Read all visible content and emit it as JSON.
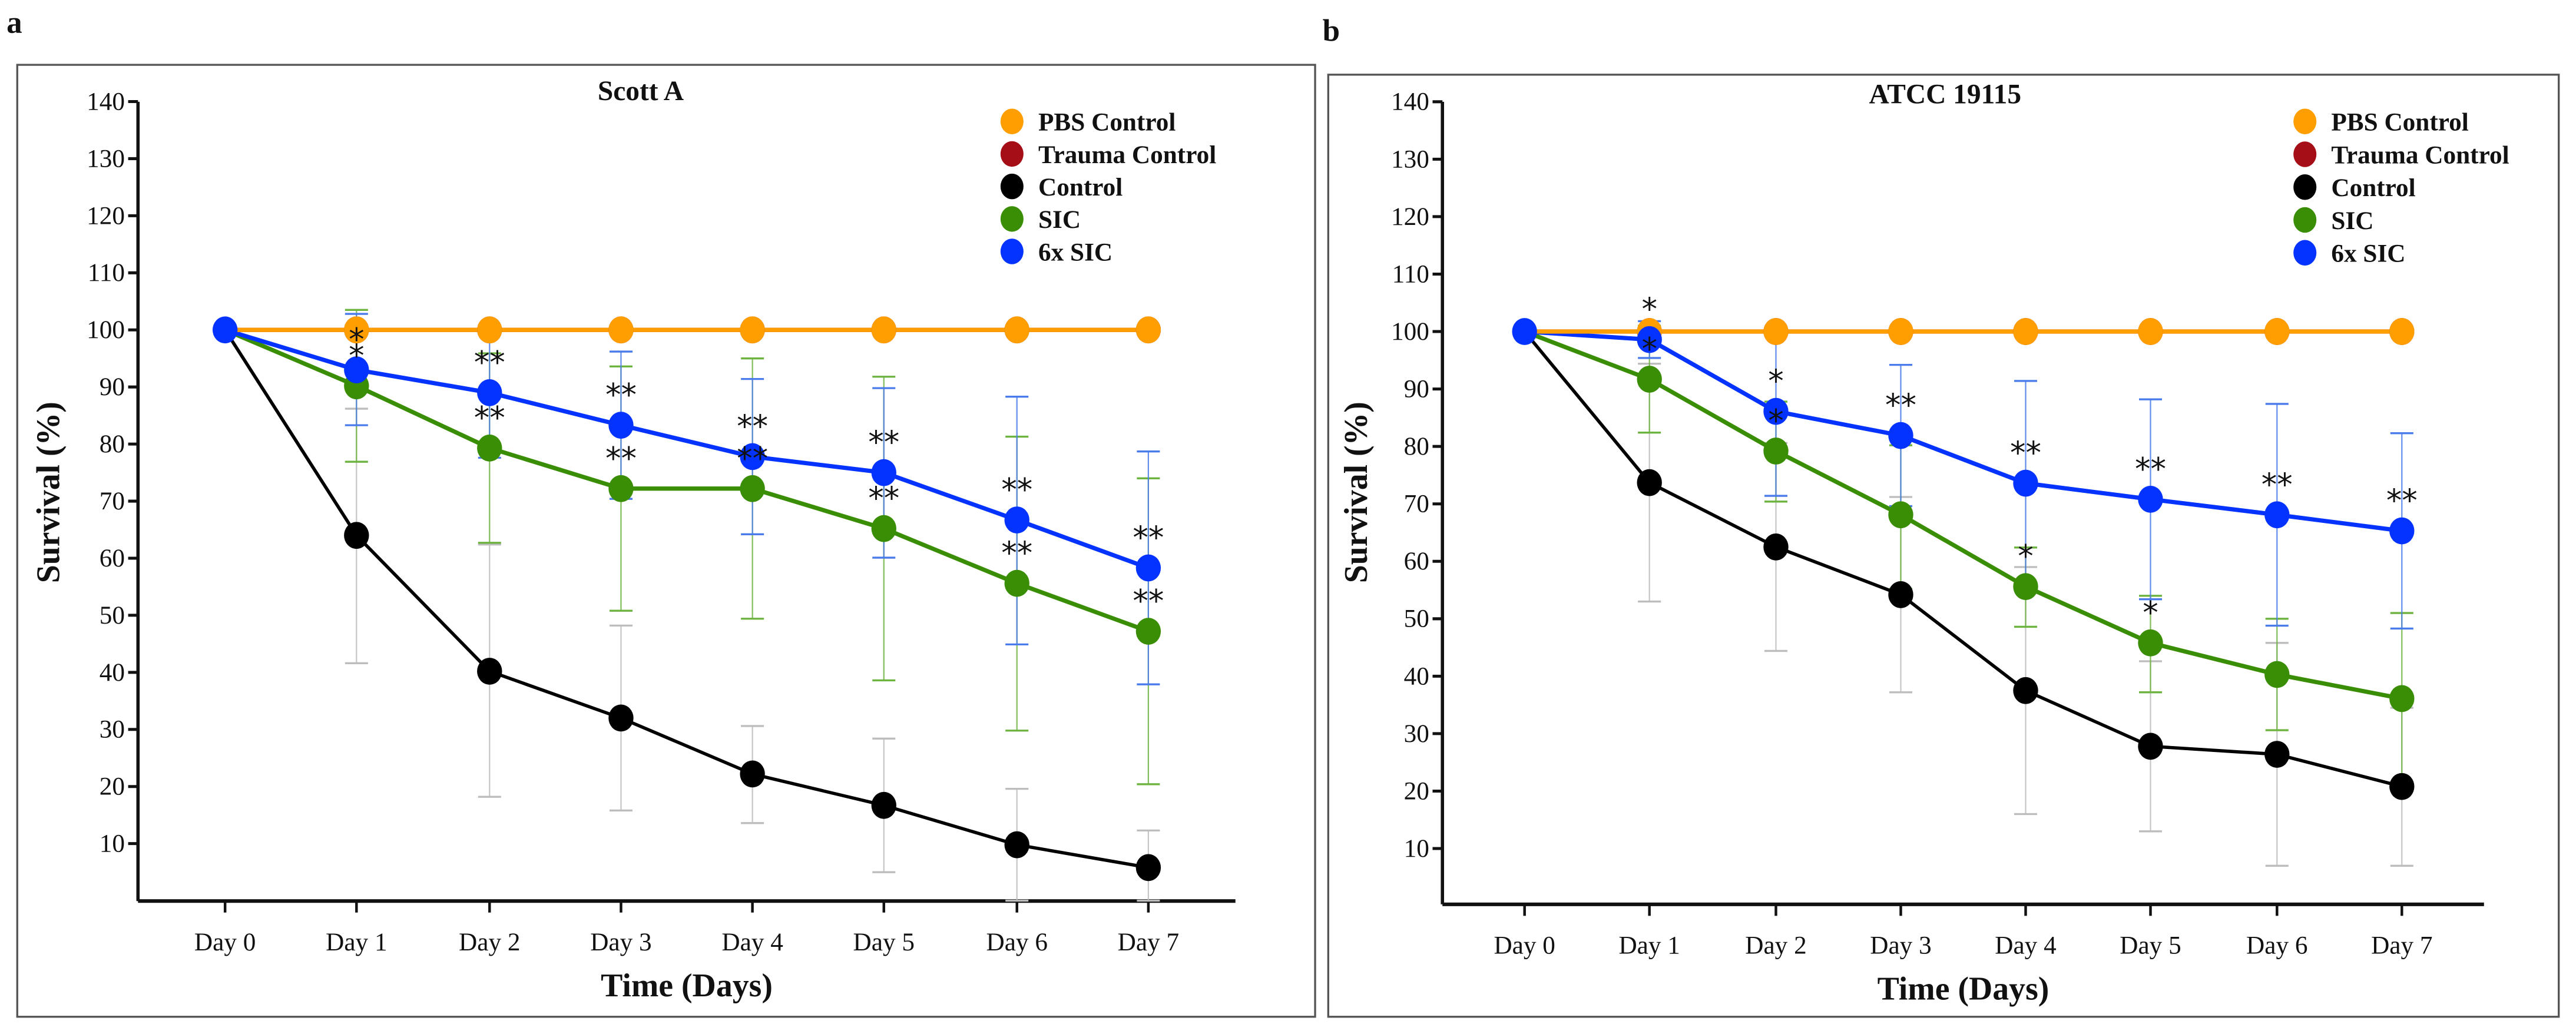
{
  "figure": {
    "panels": [
      {
        "letter": "a",
        "title": "Scott A"
      },
      {
        "letter": "b",
        "title": "ATCC 19115"
      }
    ]
  },
  "chart_data": [
    {
      "type": "line",
      "panel": "a",
      "title": "Scott A",
      "xlabel": "Time (Days)",
      "ylabel": "Survival (%)",
      "categories": [
        "Day 0",
        "Day 1",
        "Day 2",
        "Day 3",
        "Day 4",
        "Day 5",
        "Day 6",
        "Day 7"
      ],
      "yticks": [
        10,
        20,
        30,
        40,
        50,
        60,
        70,
        80,
        90,
        100,
        110,
        120,
        130,
        140
      ],
      "ylim": [
        0,
        140
      ],
      "grid": false,
      "legend_position": "top-right",
      "legend": [
        "PBS Control",
        "Trauma Control",
        "Control",
        "SIC",
        "6x SIC"
      ],
      "series": [
        {
          "name": "PBS Control",
          "color": "#FF9E00",
          "values": [
            100,
            100,
            100,
            100,
            100,
            100,
            100,
            100
          ],
          "err_upper": [
            null,
            null,
            null,
            null,
            null,
            null,
            null,
            null
          ],
          "err_lower": [
            null,
            null,
            null,
            null,
            null,
            null,
            null,
            null
          ],
          "sig": [
            "",
            "",
            "",
            "",
            "",
            "",
            "",
            ""
          ]
        },
        {
          "name": "Trauma Control",
          "color": "#A50E16",
          "values": [
            100,
            100,
            100,
            100,
            100,
            100,
            100,
            100
          ],
          "err_upper": [
            null,
            null,
            null,
            null,
            null,
            null,
            null,
            null
          ],
          "err_lower": [
            null,
            null,
            null,
            null,
            null,
            null,
            null,
            null
          ],
          "sig": [
            "",
            "",
            "",
            "",
            "",
            "",
            "",
            ""
          ]
        },
        {
          "name": "Control",
          "color": "#000000",
          "errcolor": "#bdbdbd",
          "values": [
            100,
            64.0,
            40.2,
            32.0,
            22.2,
            16.7,
            9.8,
            5.8
          ],
          "err_upper": [
            null,
            86.2,
            62.4,
            48.2,
            30.6,
            28.4,
            19.6,
            12.3
          ],
          "err_lower": [
            null,
            41.6,
            18.2,
            15.8,
            13.6,
            5.0,
            0,
            0
          ],
          "sig": [
            "",
            "",
            "",
            "",
            "",
            "",
            "",
            ""
          ]
        },
        {
          "name": "SIC",
          "color": "#3A8E06",
          "errcolor": "#6DB33F",
          "values": [
            100,
            90.2,
            79.3,
            72.2,
            72.2,
            65.2,
            55.6,
            47.2
          ],
          "err_upper": [
            null,
            103.5,
            95.9,
            93.6,
            95.0,
            91.8,
            81.3,
            74.0
          ],
          "err_lower": [
            null,
            76.9,
            62.7,
            50.8,
            49.4,
            38.6,
            29.8,
            20.4
          ],
          "sig": [
            "",
            "*",
            "**",
            "**",
            "**",
            "**",
            "**",
            "**"
          ]
        },
        {
          "name": "6x SIC",
          "color": "#0433FF",
          "errcolor": "#4A7BEA",
          "values": [
            100,
            93.0,
            89.0,
            83.3,
            77.8,
            75.0,
            66.7,
            58.3
          ],
          "err_upper": [
            null,
            102.8,
            100.2,
            96.2,
            91.4,
            89.8,
            88.3,
            78.7
          ],
          "err_lower": [
            null,
            83.3,
            77.6,
            70.4,
            64.2,
            60.1,
            44.9,
            37.9
          ],
          "sig": [
            "",
            "*",
            "**",
            "**",
            "**",
            "**",
            "**",
            "**"
          ]
        }
      ]
    },
    {
      "type": "line",
      "panel": "b",
      "title": "ATCC 19115",
      "xlabel": "Time (Days)",
      "ylabel": "Survival (%)",
      "categories": [
        "Day 0",
        "Day 1",
        "Day 2",
        "Day 3",
        "Day 4",
        "Day 5",
        "Day 6",
        "Day 7"
      ],
      "yticks": [
        10,
        20,
        30,
        40,
        50,
        60,
        70,
        80,
        90,
        100,
        110,
        120,
        130,
        140
      ],
      "ylim": [
        0,
        140
      ],
      "grid": false,
      "legend_position": "top-right",
      "legend": [
        "PBS Control",
        "Trauma Control",
        "Control",
        "SIC",
        "6x SIC"
      ],
      "series": [
        {
          "name": "PBS Control",
          "color": "#FF9E00",
          "values": [
            100,
            100,
            100,
            100,
            100,
            100,
            100,
            100
          ],
          "err_upper": [
            null,
            null,
            null,
            null,
            null,
            null,
            null,
            null
          ],
          "err_lower": [
            null,
            null,
            null,
            null,
            null,
            null,
            null,
            null
          ],
          "sig": [
            "",
            "",
            "",
            "",
            "",
            "",
            "",
            ""
          ]
        },
        {
          "name": "Trauma Control",
          "color": "#A50E16",
          "values": [
            100,
            100,
            100,
            100,
            100,
            100,
            100,
            100
          ],
          "err_upper": [
            null,
            null,
            null,
            null,
            null,
            null,
            null,
            null
          ],
          "err_lower": [
            null,
            null,
            null,
            null,
            null,
            null,
            null,
            null
          ],
          "sig": [
            "",
            "",
            "",
            "",
            "",
            "",
            "",
            ""
          ]
        },
        {
          "name": "Control",
          "color": "#000000",
          "errcolor": "#bdbdbd",
          "values": [
            100,
            73.7,
            62.5,
            54.2,
            37.5,
            27.8,
            26.4,
            20.8
          ],
          "err_upper": [
            null,
            94.4,
            80.6,
            71.2,
            59.0,
            42.6,
            45.8,
            34.5
          ],
          "err_lower": [
            null,
            53.0,
            44.4,
            37.2,
            16.0,
            13.0,
            7.0,
            7.0
          ],
          "sig": [
            "",
            "",
            "",
            "",
            "",
            "",
            "",
            ""
          ]
        },
        {
          "name": "SIC",
          "color": "#3A8E06",
          "errcolor": "#6DB33F",
          "values": [
            100,
            91.7,
            79.2,
            68.1,
            55.6,
            45.8,
            40.3,
            36.1
          ],
          "err_upper": [
            null,
            101.0,
            87.8,
            80.2,
            62.4,
            54.0,
            50.0,
            51.0
          ],
          "err_lower": [
            null,
            82.4,
            70.4,
            55.2,
            48.6,
            37.2,
            30.6,
            21.0
          ],
          "sig": [
            "",
            "*",
            "*",
            "",
            "*",
            "*",
            "",
            ""
          ]
        },
        {
          "name": "6x SIC",
          "color": "#0433FF",
          "errcolor": "#4A7BEA",
          "values": [
            100,
            98.6,
            86.1,
            81.9,
            73.6,
            70.8,
            68.1,
            65.3
          ],
          "err_upper": [
            null,
            101.8,
            100.8,
            94.2,
            91.4,
            88.2,
            87.4,
            82.3
          ],
          "err_lower": [
            null,
            95.4,
            71.4,
            69.6,
            55.8,
            53.4,
            48.8,
            48.3
          ],
          "sig": [
            "",
            "*",
            "*",
            "**",
            "**",
            "**",
            "**",
            "**"
          ]
        }
      ]
    }
  ]
}
